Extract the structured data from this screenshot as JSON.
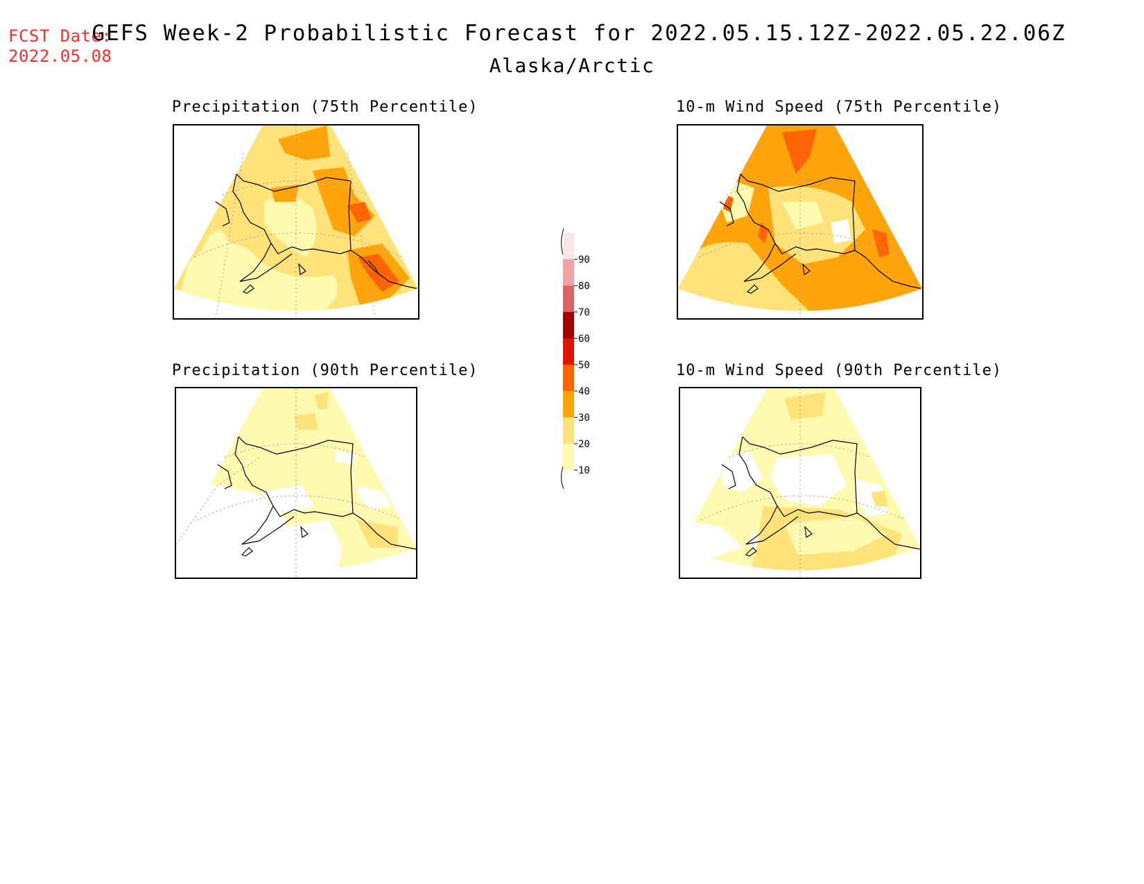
{
  "header": {
    "fcst_label": "FCST Date:",
    "fcst_date": "2022.05.08",
    "title": "GEFS Week-2 Probabilistic Forecast for 2022.05.15.12Z-2022.05.22.06Z",
    "region": "Alaska/Arctic"
  },
  "panels": {
    "precip75": {
      "title": "Precipitation (75th Percentile)"
    },
    "wind75": {
      "title": "10-m Wind Speed (75th Percentile)"
    },
    "precip90": {
      "title": "Precipitation (90th Percentile)"
    },
    "wind90": {
      "title": "10-m Wind Speed (90th Percentile)"
    }
  },
  "colorbar": {
    "labels": [
      "90",
      "80",
      "70",
      "60",
      "50",
      "40",
      "30",
      "20",
      "10"
    ],
    "levels": [
      {
        "range": "10-20",
        "color": "#fffaaf"
      },
      {
        "range": "20-30",
        "color": "#ffe27a"
      },
      {
        "range": "30-40",
        "color": "#ffa40a"
      },
      {
        "range": "40-50",
        "color": "#ff6400"
      },
      {
        "range": "50-60",
        "color": "#e11400"
      },
      {
        "range": "60-70",
        "color": "#a50000"
      },
      {
        "range": "70-80",
        "color": "#dd6262"
      },
      {
        "range": "80-90",
        "color": "#f2a2a2"
      },
      {
        "range": ">90",
        "color": "#fde4e4"
      }
    ]
  },
  "colors": {
    "fcst_text": "#ff2a2a",
    "c10": "#fffaaf",
    "c20": "#ffe27a",
    "c30": "#ffa40a",
    "c40": "#ff6400"
  }
}
